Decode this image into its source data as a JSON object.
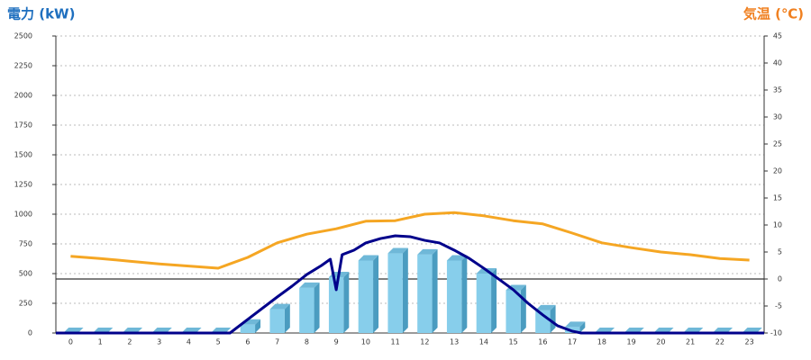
{
  "chart_data": {
    "type": "combo",
    "title": "電力 (kW)",
    "y2_title": "気温 (℃)",
    "categories": [
      "0",
      "1",
      "2",
      "3",
      "4",
      "5",
      "6",
      "7",
      "8",
      "9",
      "10",
      "11",
      "12",
      "13",
      "14",
      "15",
      "16",
      "17",
      "18",
      "19",
      "20",
      "21",
      "22",
      "23"
    ],
    "ylim": [
      0,
      2500
    ],
    "yticks": [
      0,
      250,
      500,
      750,
      1000,
      1250,
      1500,
      1750,
      2000,
      2250,
      2500
    ],
    "y2lim": [
      -10,
      45
    ],
    "y2ticks": [
      -10,
      -5,
      0,
      5,
      10,
      15,
      20,
      25,
      30,
      35,
      40,
      45
    ],
    "xlim": [
      -0.5,
      23.5
    ],
    "grid": true,
    "y2_zero_line": true,
    "series": [
      {
        "type": "bar",
        "color": "#87ceeb",
        "values": [
          0,
          0,
          0,
          0,
          0,
          0,
          70,
          200,
          380,
          470,
          610,
          670,
          660,
          610,
          500,
          360,
          190,
          50,
          0,
          0,
          0,
          0,
          0,
          0
        ]
      },
      {
        "type": "line",
        "color": "#00008b",
        "x": [
          -0.5,
          5.4,
          6,
          7,
          7.5,
          8,
          8.5,
          8.8,
          9,
          9.2,
          9.6,
          10,
          10.5,
          11,
          11.5,
          12,
          12.5,
          13,
          13.5,
          14,
          14.5,
          15,
          15.5,
          16,
          16.5,
          17,
          17.3,
          23.5
        ],
        "values": [
          0,
          0,
          114,
          303,
          394,
          492,
          568,
          621,
          364,
          659,
          697,
          758,
          795,
          818,
          811,
          780,
          758,
          697,
          629,
          545,
          455,
          364,
          250,
          152,
          61,
          15,
          0,
          0
        ]
      },
      {
        "type": "line",
        "color": "#f5a623",
        "axis": "y2",
        "values": [
          4.2,
          3.8,
          3.3,
          2.8,
          2.4,
          2.0,
          4.0,
          6.7,
          8.3,
          9.3,
          10.7,
          10.8,
          12.0,
          12.3,
          11.7,
          10.8,
          10.2,
          8.5,
          6.7,
          5.8,
          5.0,
          4.5,
          3.8,
          3.5
        ]
      }
    ]
  }
}
